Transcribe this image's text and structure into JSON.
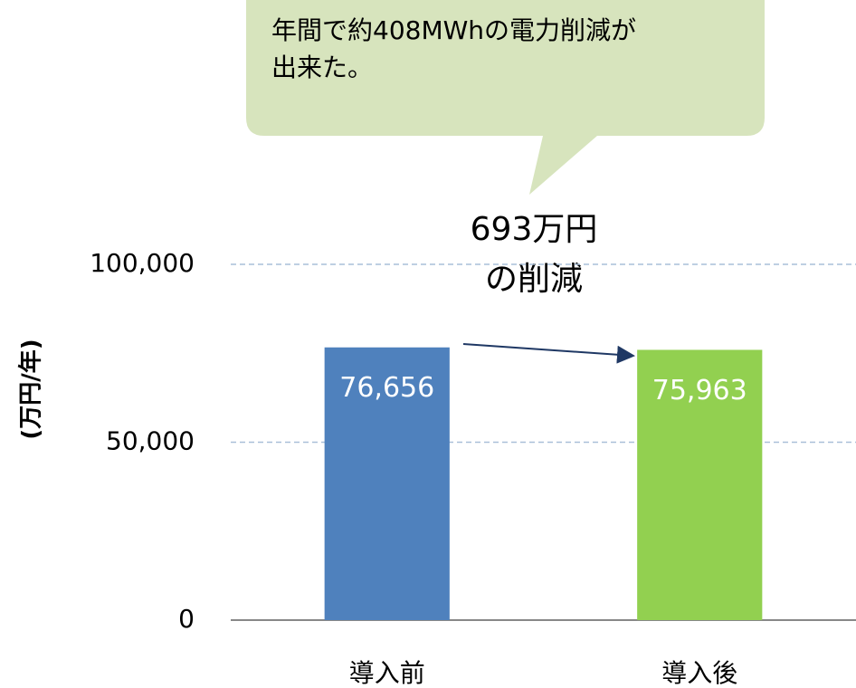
{
  "chart_data": {
    "type": "bar",
    "ylabel": "(万円/年)",
    "categories": [
      "導入前",
      "導入後"
    ],
    "values": [
      76656,
      75963
    ],
    "value_labels": [
      "76,656",
      "75,963"
    ],
    "colors": [
      "#4f81bd",
      "#92d050"
    ],
    "ylim": [
      0,
      100000
    ],
    "yticks": [
      0,
      {
        "value": 50000,
        "label": "50,000"
      },
      {
        "value": 100000,
        "label": "100,000"
      }
    ],
    "grid": true,
    "callout": [
      "年間で約408MWhの電力削減が",
      "出来た。"
    ],
    "annotation": [
      "693万円",
      "の削減"
    ]
  }
}
